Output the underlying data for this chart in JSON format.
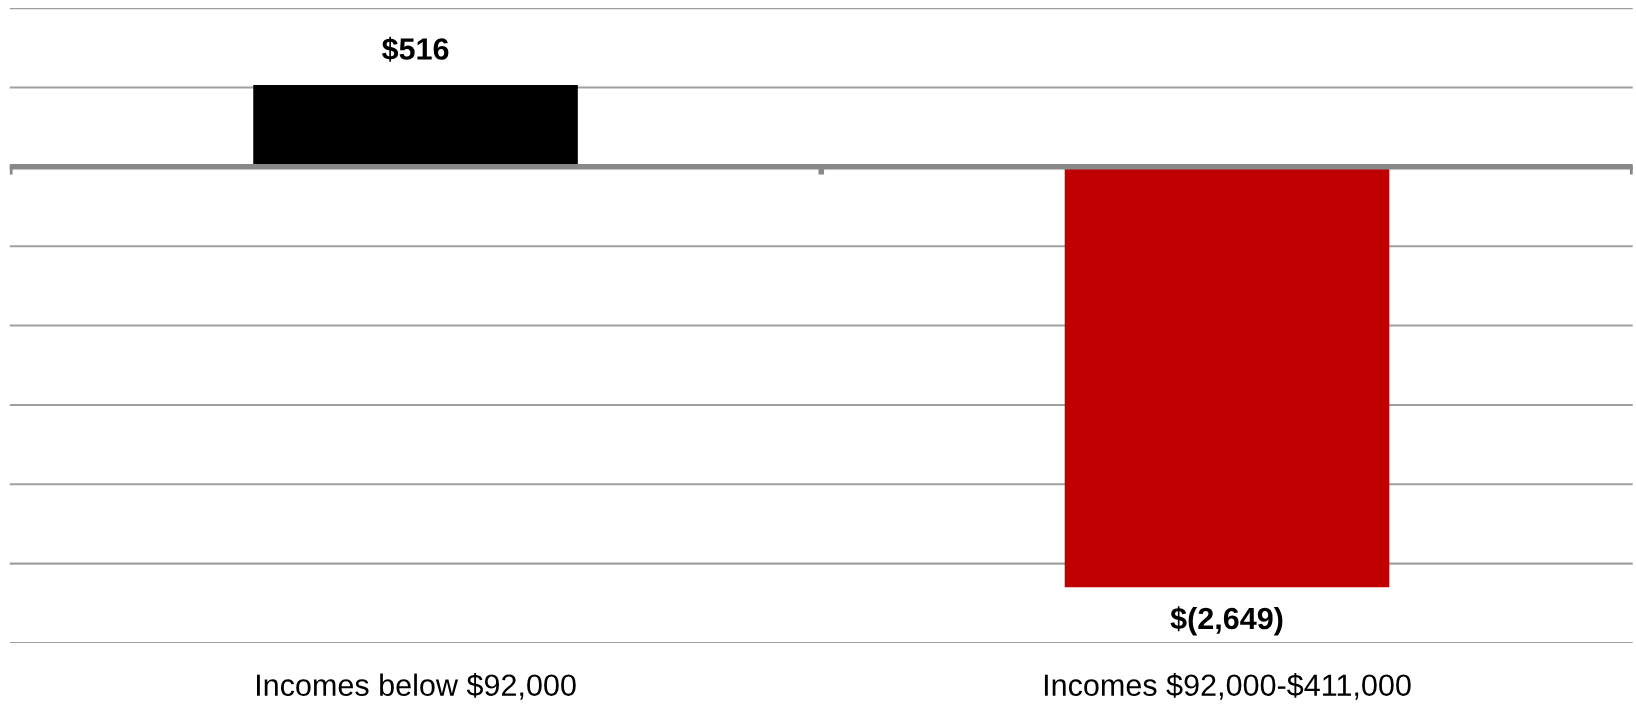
{
  "chart_data": {
    "type": "bar",
    "categories": [
      "Incomes below $92,000",
      "Incomes $92,000-$411,000"
    ],
    "values": [
      516,
      -2649
    ],
    "colors": [
      "#000000",
      "#c00000"
    ],
    "value_labels": [
      "$516",
      "$(2,649)"
    ],
    "ylim": [
      -3000,
      1000
    ],
    "yticks": [
      {
        "value": -3000,
        "label": null
      },
      {
        "value": -2500,
        "label": null
      },
      {
        "value": -2000,
        "label": null
      },
      {
        "value": -1500,
        "label": null
      },
      {
        "value": -1000,
        "label": null
      },
      {
        "value": -500,
        "label": null
      },
      {
        "value": 0,
        "label": null
      },
      {
        "value": 500,
        "label": null
      },
      {
        "value": 1000,
        "label": null
      }
    ],
    "tick_labels": "x",
    "grid": "y",
    "legend": false
  }
}
